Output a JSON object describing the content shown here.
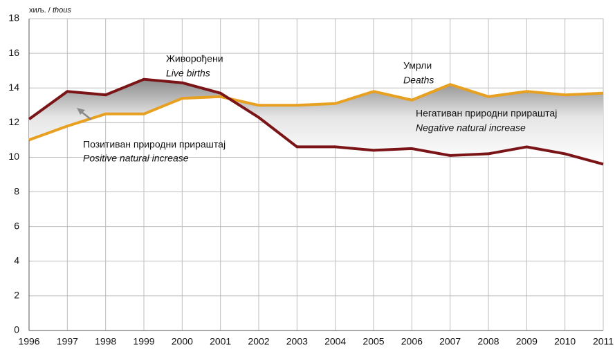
{
  "chart_data": {
    "type": "line",
    "y_label_sr": "хиљ. /",
    "y_label_en": "thous",
    "x": [
      1996,
      1997,
      1998,
      1999,
      2000,
      2001,
      2002,
      2003,
      2004,
      2005,
      2006,
      2007,
      2008,
      2009,
      2010,
      2011
    ],
    "series": [
      {
        "name": "Живорођени",
        "name_en": "Live births",
        "color": "#7a1416",
        "values": [
          12.2,
          13.8,
          13.6,
          14.5,
          14.3,
          13.7,
          12.3,
          10.6,
          10.6,
          10.4,
          10.5,
          10.1,
          10.2,
          10.6,
          10.2,
          9.6
        ]
      },
      {
        "name": "Умрли",
        "name_en": "Deaths",
        "color": "#e8a020",
        "values": [
          11.0,
          11.8,
          12.5,
          12.5,
          13.4,
          13.5,
          13.0,
          13.0,
          13.1,
          13.8,
          13.3,
          14.2,
          13.5,
          13.8,
          13.6,
          13.7
        ]
      }
    ],
    "annotations": [
      {
        "text": "Негативан природни прираштај",
        "text_en": "Negative natural increase"
      },
      {
        "text": "Позитиван природни прираштај",
        "text_en": "Positive natural increase"
      }
    ],
    "xlim": [
      1996,
      2011
    ],
    "xticks": [
      1996,
      1997,
      1998,
      1999,
      2000,
      2001,
      2002,
      2003,
      2004,
      2005,
      2006,
      2007,
      2008,
      2009,
      2010,
      2011
    ],
    "ylim": [
      0,
      18
    ],
    "yticks": [
      0,
      2,
      4,
      6,
      8,
      10,
      12,
      14,
      16,
      18
    ],
    "grid": true
  }
}
